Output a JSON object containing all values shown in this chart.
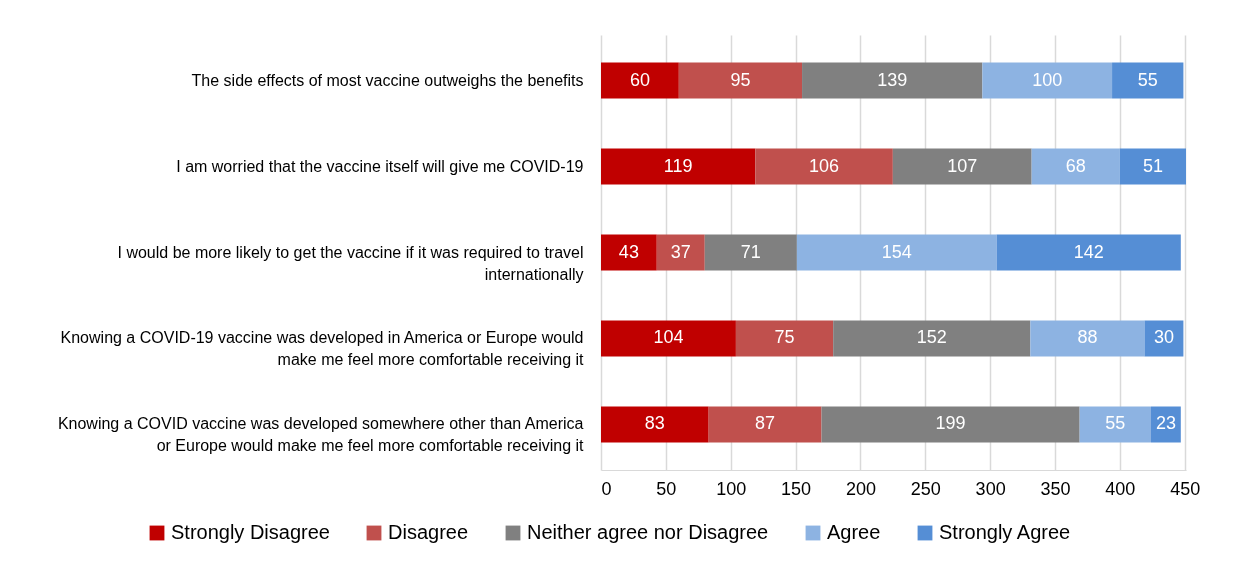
{
  "chart_data": {
    "type": "bar",
    "orientation": "horizontal",
    "stacked": true,
    "categories": [
      "The side effects of most vaccine outweighs the benefits",
      "I am worried that the vaccine itself will give me COVID-19",
      "I would be more likely to get the vaccine if it was required to travel internationally",
      "Knowing a COVID-19 vaccine was developed in America or Europe would make me feel more comfortable receiving it",
      "Knowing a COVID vaccine was developed somewhere other than America or Europe would make me feel more comfortable receiving it"
    ],
    "series": [
      {
        "name": "Strongly Disagree",
        "color": "#c00000",
        "values": [
          60,
          119,
          43,
          104,
          83
        ]
      },
      {
        "name": "Disagree",
        "color": "#c0504d",
        "values": [
          95,
          106,
          37,
          75,
          87
        ]
      },
      {
        "name": "Neither agree nor Disagree",
        "color": "#808080",
        "values": [
          139,
          107,
          71,
          152,
          199
        ]
      },
      {
        "name": "Agree",
        "color": "#8db3e2",
        "values": [
          100,
          68,
          154,
          88,
          55
        ]
      },
      {
        "name": "Strongly Agree",
        "color": "#558ed5",
        "values": [
          55,
          51,
          142,
          30,
          23
        ]
      }
    ],
    "xlim": [
      0,
      451
    ],
    "xticks": [
      0,
      50,
      100,
      150,
      200,
      250,
      300,
      350,
      400,
      450
    ],
    "grid": "x",
    "legend": "bottom",
    "data_labels": true
  }
}
